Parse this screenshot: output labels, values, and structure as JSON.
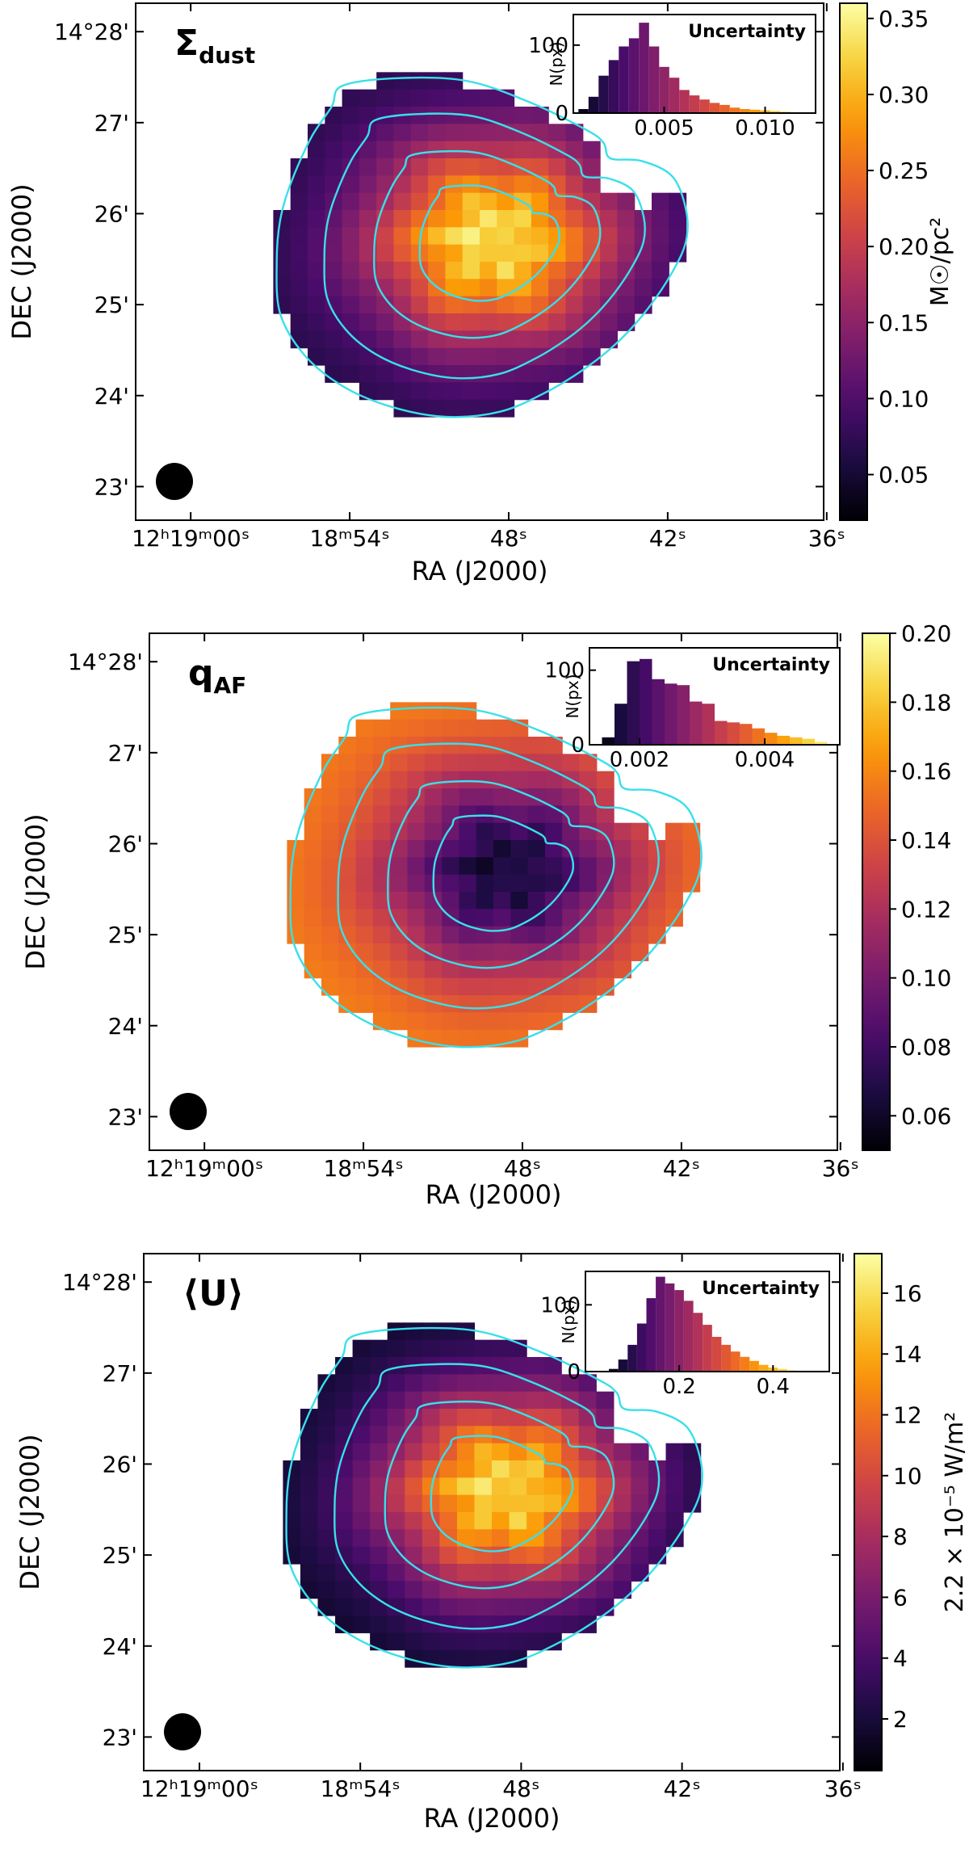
{
  "colors": {
    "contour": "#38e0ea",
    "colormap": [
      "#000004",
      "#1b0c41",
      "#4a0c6b",
      "#781c6d",
      "#a52c60",
      "#cf4446",
      "#ed6925",
      "#fb9b06",
      "#f7d13d",
      "#fcffa4"
    ]
  },
  "chart_data": [
    {
      "type": "heatmap",
      "title": "Σ",
      "title_sub": "dust",
      "xlabel": "RA (J2000)",
      "ylabel": "DEC  (J2000)",
      "x_ticks": [
        {
          "label": "12ʰ19ᵐ00ˢ",
          "value": 0
        },
        {
          "label": "18ᵐ54ˢ",
          "value": 6
        },
        {
          "label": "48ˢ",
          "value": 12
        },
        {
          "label": "42ˢ",
          "value": 18
        },
        {
          "label": "36ˢ",
          "value": 24
        }
      ],
      "y_ticks": [
        {
          "label": "14°28'",
          "value": 28
        },
        {
          "label": "27'",
          "value": 27
        },
        {
          "label": "26'",
          "value": 26
        },
        {
          "label": "25'",
          "value": 25
        },
        {
          "label": "24'",
          "value": 24
        },
        {
          "label": "23'",
          "value": 23
        }
      ],
      "colorbar": {
        "label": "M☉/pc²",
        "range": [
          0.02,
          0.36
        ],
        "ticks": [
          "0.05",
          "0.10",
          "0.15",
          "0.20",
          "0.25",
          "0.30",
          "0.35"
        ],
        "tick_values": [
          0.05,
          0.1,
          0.15,
          0.2,
          0.25,
          0.3,
          0.35
        ]
      },
      "map": {
        "peak_value": 0.36,
        "edge_value": 0.06,
        "centre_offset": [
          0.0,
          0.0
        ]
      },
      "inset": {
        "title": "Uncertainty",
        "ylabel": "N(px)",
        "x_ticks": [
          "0.005",
          "0.010"
        ],
        "x_tick_values": [
          0.005,
          0.01
        ],
        "y_ticks": [
          "0",
          "100"
        ],
        "y_tick_values": [
          0,
          100
        ],
        "xlim": [
          0.0005,
          0.0125
        ],
        "ylim": [
          0,
          145
        ],
        "bins": [
          0.001,
          0.0015,
          0.002,
          0.0025,
          0.003,
          0.0035,
          0.004,
          0.0045,
          0.005,
          0.0055,
          0.006,
          0.0065,
          0.007,
          0.0075,
          0.008,
          0.0085,
          0.009,
          0.0095,
          0.01,
          0.0105,
          0.011,
          0.0115
        ],
        "counts": [
          6,
          24,
          55,
          78,
          98,
          110,
          133,
          98,
          68,
          52,
          34,
          26,
          20,
          15,
          12,
          8,
          6,
          5,
          4,
          3,
          2,
          1
        ]
      }
    },
    {
      "type": "heatmap",
      "title": "q",
      "title_sub": "AF",
      "xlabel": "RA (J2000)",
      "ylabel": "DEC  (J2000)",
      "x_ticks": [
        {
          "label": "12ʰ19ᵐ00ˢ",
          "value": 0
        },
        {
          "label": "18ᵐ54ˢ",
          "value": 6
        },
        {
          "label": "48ˢ",
          "value": 12
        },
        {
          "label": "42ˢ",
          "value": 18
        },
        {
          "label": "36ˢ",
          "value": 24
        }
      ],
      "y_ticks": [
        {
          "label": "14°28'",
          "value": 28
        },
        {
          "label": "27'",
          "value": 27
        },
        {
          "label": "26'",
          "value": 26
        },
        {
          "label": "25'",
          "value": 25
        },
        {
          "label": "24'",
          "value": 24
        },
        {
          "label": "23'",
          "value": 23
        }
      ],
      "colorbar": {
        "label": "",
        "range": [
          0.05,
          0.2
        ],
        "ticks": [
          "0.06",
          "0.08",
          "0.10",
          "0.12",
          "0.14",
          "0.16",
          "0.18",
          "0.20"
        ],
        "tick_values": [
          0.06,
          0.08,
          0.1,
          0.12,
          0.14,
          0.16,
          0.18,
          0.2
        ]
      },
      "map": {
        "peak_value": 0.055,
        "edge_value": 0.16,
        "centre_offset": [
          0.0,
          0.0
        ]
      },
      "inset": {
        "title": "Uncertainty",
        "ylabel": "N(px)",
        "x_ticks": [
          "0.002",
          "0.004"
        ],
        "x_tick_values": [
          0.002,
          0.004
        ],
        "y_ticks": [
          "0",
          "100"
        ],
        "y_tick_values": [
          0,
          100
        ],
        "xlim": [
          0.0012,
          0.0052
        ],
        "ylim": [
          0,
          130
        ],
        "bins": [
          0.0015,
          0.0017,
          0.0019,
          0.0021,
          0.0023,
          0.0025,
          0.0027,
          0.0029,
          0.0031,
          0.0033,
          0.0035,
          0.0037,
          0.0039,
          0.0041,
          0.0043,
          0.0045,
          0.0047,
          0.0049
        ],
        "counts": [
          10,
          55,
          112,
          115,
          88,
          82,
          80,
          58,
          55,
          32,
          30,
          28,
          22,
          16,
          12,
          10,
          8,
          4
        ]
      }
    },
    {
      "type": "heatmap",
      "title": "⟨U⟩",
      "title_sub": "",
      "xlabel": "RA (J2000)",
      "ylabel": "DEC  (J2000)",
      "x_ticks": [
        {
          "label": "12ʰ19ᵐ00ˢ",
          "value": 0
        },
        {
          "label": "18ᵐ54ˢ",
          "value": 6
        },
        {
          "label": "48ˢ",
          "value": 12
        },
        {
          "label": "42ˢ",
          "value": 18
        },
        {
          "label": "36ˢ",
          "value": 24
        }
      ],
      "y_ticks": [
        {
          "label": "14°28'",
          "value": 28
        },
        {
          "label": "27'",
          "value": 27
        },
        {
          "label": "26'",
          "value": 26
        },
        {
          "label": "25'",
          "value": 25
        },
        {
          "label": "24'",
          "value": 24
        },
        {
          "label": "23'",
          "value": 23
        }
      ],
      "colorbar": {
        "label": "2.2 × 10⁻⁵ W/m²",
        "range": [
          0.3,
          17.3
        ],
        "ticks": [
          "2",
          "4",
          "6",
          "8",
          "10",
          "12",
          "14",
          "16"
        ],
        "tick_values": [
          2,
          4,
          6,
          8,
          10,
          12,
          14,
          16
        ]
      },
      "map": {
        "peak_value": 17.0,
        "edge_value": 1.2,
        "centre_offset": [
          0.0,
          0.0
        ]
      },
      "inset": {
        "title": "Uncertainty",
        "ylabel": "N(px)",
        "x_ticks": [
          "0.2",
          "0.4"
        ],
        "x_tick_values": [
          0.2,
          0.4
        ],
        "y_ticks": [
          "0",
          "100"
        ],
        "y_tick_values": [
          0,
          100
        ],
        "xlim": [
          0.0,
          0.52
        ],
        "ylim": [
          0,
          150
        ],
        "bins": [
          0.06,
          0.08,
          0.1,
          0.12,
          0.14,
          0.16,
          0.18,
          0.2,
          0.22,
          0.24,
          0.26,
          0.28,
          0.3,
          0.32,
          0.34,
          0.36,
          0.38,
          0.4,
          0.42,
          0.44
        ],
        "counts": [
          4,
          18,
          40,
          72,
          110,
          142,
          132,
          122,
          106,
          88,
          70,
          52,
          40,
          30,
          22,
          16,
          10,
          6,
          4,
          2
        ]
      }
    }
  ]
}
